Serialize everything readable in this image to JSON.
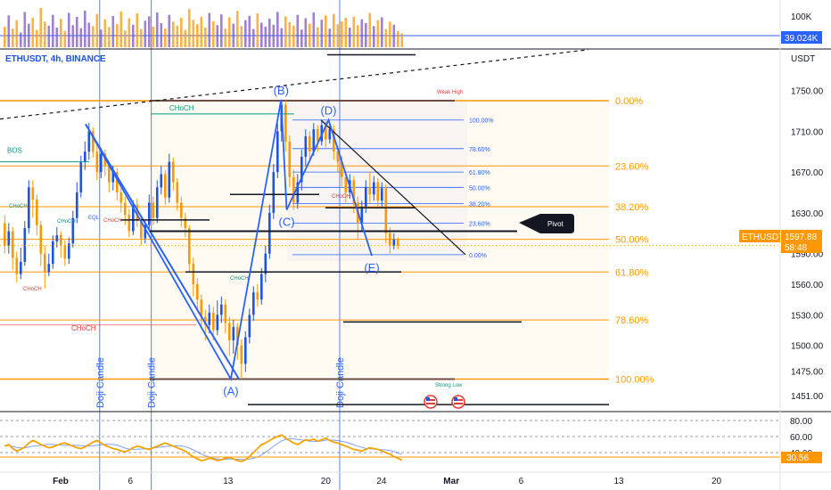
{
  "header": {
    "symbol": "ETHUSDT, 4h, BINANCE",
    "currency": "USDT",
    "volume_axis_label": "100K",
    "volume_value": "39.024K"
  },
  "price_tag": {
    "ticker": "ETHUSDT",
    "price": "1597.88",
    "countdown": "58:48"
  },
  "rsi_value": "30.56",
  "chart_data": [
    {
      "type": "candlestick",
      "title": "ETHUSDT, 4h, BINANCE",
      "y_unit": "USDT",
      "y_ticks": [
        {
          "value": 1750,
          "label": "1750.00"
        },
        {
          "value": 1710,
          "label": "1710.00"
        },
        {
          "value": 1670,
          "label": "1670.00"
        },
        {
          "value": 1630,
          "label": "1630.00"
        },
        {
          "value": 1590,
          "label": "1590.00"
        },
        {
          "value": 1560,
          "label": "1560.00"
        },
        {
          "value": 1530,
          "label": "1530.00"
        },
        {
          "value": 1500,
          "label": "1500.00"
        },
        {
          "value": 1475,
          "label": "1475.00"
        },
        {
          "value": 1451,
          "label": "1451.00"
        }
      ],
      "x_ticks": [
        {
          "day": 1,
          "label": "Feb"
        },
        {
          "day": 6,
          "label": "6"
        },
        {
          "day": 13,
          "label": "13"
        },
        {
          "day": 20,
          "label": "20"
        },
        {
          "day": 24,
          "label": "24"
        },
        {
          "day": 29,
          "label": "Mar"
        },
        {
          "day": 34,
          "label": "6"
        },
        {
          "day": 41,
          "label": "13"
        },
        {
          "day": 48,
          "label": "20"
        }
      ],
      "fib_levels": [
        {
          "ratio": "0.00%",
          "price": 1740
        },
        {
          "ratio": "23.60%",
          "price": 1676
        },
        {
          "ratio": "38.20%",
          "price": 1636
        },
        {
          "ratio": "50.00%",
          "price": 1604
        },
        {
          "ratio": "61.80%",
          "price": 1572
        },
        {
          "ratio": "78.60%",
          "price": 1525
        },
        {
          "ratio": "100.00%",
          "price": 1467
        }
      ],
      "small_fib_levels": [
        {
          "ratio": "100.00%",
          "price": 1721
        },
        {
          "ratio": "78.60%",
          "price": 1693
        },
        {
          "ratio": "61.80%",
          "price": 1670
        },
        {
          "ratio": "50.00%",
          "price": 1655
        },
        {
          "ratio": "38.20%",
          "price": 1639
        },
        {
          "ratio": "23.60%",
          "price": 1620
        },
        {
          "ratio": "0.00%",
          "price": 1589
        }
      ],
      "wave_points": [
        {
          "label": "(A)",
          "day": 13.2,
          "price": 1467
        },
        {
          "label": "(B)",
          "day": 16.8,
          "price": 1741
        },
        {
          "label": "(C)",
          "day": 17.2,
          "price": 1633
        },
        {
          "label": "(D)",
          "day": 20.2,
          "price": 1721
        },
        {
          "label": "(E)",
          "day": 23.3,
          "price": 1588
        }
      ],
      "annotations": [
        "BOS",
        "CHoCH",
        "EQL",
        "Weak High",
        "Strong Low",
        "Pivot",
        "Doji Candle"
      ],
      "vertical_marks": [
        {
          "day": 3.8,
          "label": "Doji Candle"
        },
        {
          "day": 7.5,
          "label": "Doji Candle"
        },
        {
          "day": 21.0,
          "label": "Doji Candle"
        }
      ],
      "last_close": 1597.88,
      "candles": [
        {
          "o": 1620,
          "c": 1598,
          "h": 1628,
          "l": 1590
        },
        {
          "o": 1598,
          "c": 1612,
          "h": 1620,
          "l": 1590
        },
        {
          "o": 1612,
          "c": 1586,
          "h": 1616,
          "l": 1574
        },
        {
          "o": 1586,
          "c": 1570,
          "h": 1592,
          "l": 1562
        },
        {
          "o": 1570,
          "c": 1582,
          "h": 1596,
          "l": 1565
        },
        {
          "o": 1582,
          "c": 1615,
          "h": 1622,
          "l": 1578
        },
        {
          "o": 1615,
          "c": 1655,
          "h": 1662,
          "l": 1610
        },
        {
          "o": 1655,
          "c": 1643,
          "h": 1662,
          "l": 1625
        },
        {
          "o": 1643,
          "c": 1618,
          "h": 1648,
          "l": 1608
        },
        {
          "o": 1618,
          "c": 1590,
          "h": 1622,
          "l": 1578
        },
        {
          "o": 1590,
          "c": 1572,
          "h": 1598,
          "l": 1556
        },
        {
          "o": 1572,
          "c": 1580,
          "h": 1590,
          "l": 1568
        },
        {
          "o": 1580,
          "c": 1602,
          "h": 1608,
          "l": 1575
        },
        {
          "o": 1602,
          "c": 1608,
          "h": 1616,
          "l": 1596
        },
        {
          "o": 1608,
          "c": 1598,
          "h": 1612,
          "l": 1586
        },
        {
          "o": 1598,
          "c": 1585,
          "h": 1603,
          "l": 1578
        },
        {
          "o": 1585,
          "c": 1600,
          "h": 1606,
          "l": 1580
        },
        {
          "o": 1600,
          "c": 1625,
          "h": 1632,
          "l": 1596
        },
        {
          "o": 1625,
          "c": 1650,
          "h": 1660,
          "l": 1620
        },
        {
          "o": 1650,
          "c": 1680,
          "h": 1686,
          "l": 1645
        },
        {
          "o": 1680,
          "c": 1690,
          "h": 1700,
          "l": 1672
        },
        {
          "o": 1690,
          "c": 1710,
          "h": 1718,
          "l": 1682
        },
        {
          "o": 1710,
          "c": 1690,
          "h": 1714,
          "l": 1684
        },
        {
          "o": 1690,
          "c": 1670,
          "h": 1696,
          "l": 1662
        },
        {
          "o": 1670,
          "c": 1688,
          "h": 1694,
          "l": 1664
        },
        {
          "o": 1688,
          "c": 1676,
          "h": 1692,
          "l": 1666
        },
        {
          "o": 1676,
          "c": 1660,
          "h": 1680,
          "l": 1650
        },
        {
          "o": 1660,
          "c": 1670,
          "h": 1676,
          "l": 1652
        },
        {
          "o": 1670,
          "c": 1650,
          "h": 1674,
          "l": 1642
        },
        {
          "o": 1650,
          "c": 1640,
          "h": 1656,
          "l": 1630
        },
        {
          "o": 1640,
          "c": 1628,
          "h": 1646,
          "l": 1618
        },
        {
          "o": 1628,
          "c": 1612,
          "h": 1634,
          "l": 1606
        },
        {
          "o": 1612,
          "c": 1638,
          "h": 1642,
          "l": 1608
        },
        {
          "o": 1638,
          "c": 1622,
          "h": 1644,
          "l": 1616
        },
        {
          "o": 1622,
          "c": 1605,
          "h": 1628,
          "l": 1598
        },
        {
          "o": 1605,
          "c": 1618,
          "h": 1622,
          "l": 1600
        },
        {
          "o": 1618,
          "c": 1640,
          "h": 1648,
          "l": 1612
        },
        {
          "o": 1640,
          "c": 1625,
          "h": 1646,
          "l": 1618
        },
        {
          "o": 1625,
          "c": 1655,
          "h": 1662,
          "l": 1620
        },
        {
          "o": 1655,
          "c": 1668,
          "h": 1676,
          "l": 1648
        },
        {
          "o": 1668,
          "c": 1645,
          "h": 1672,
          "l": 1638
        },
        {
          "o": 1645,
          "c": 1680,
          "h": 1688,
          "l": 1640
        },
        {
          "o": 1680,
          "c": 1660,
          "h": 1684,
          "l": 1652
        },
        {
          "o": 1660,
          "c": 1640,
          "h": 1664,
          "l": 1632
        },
        {
          "o": 1640,
          "c": 1625,
          "h": 1646,
          "l": 1616
        },
        {
          "o": 1625,
          "c": 1615,
          "h": 1630,
          "l": 1606
        },
        {
          "o": 1615,
          "c": 1580,
          "h": 1618,
          "l": 1572
        },
        {
          "o": 1580,
          "c": 1560,
          "h": 1586,
          "l": 1548
        },
        {
          "o": 1560,
          "c": 1545,
          "h": 1566,
          "l": 1534
        },
        {
          "o": 1545,
          "c": 1528,
          "h": 1550,
          "l": 1516
        },
        {
          "o": 1528,
          "c": 1520,
          "h": 1535,
          "l": 1505
        },
        {
          "o": 1520,
          "c": 1532,
          "h": 1540,
          "l": 1512
        },
        {
          "o": 1532,
          "c": 1515,
          "h": 1538,
          "l": 1505
        },
        {
          "o": 1515,
          "c": 1530,
          "h": 1544,
          "l": 1510
        },
        {
          "o": 1530,
          "c": 1540,
          "h": 1548,
          "l": 1522
        },
        {
          "o": 1540,
          "c": 1522,
          "h": 1545,
          "l": 1512
        },
        {
          "o": 1522,
          "c": 1505,
          "h": 1528,
          "l": 1490
        },
        {
          "o": 1505,
          "c": 1518,
          "h": 1525,
          "l": 1492
        },
        {
          "o": 1518,
          "c": 1500,
          "h": 1522,
          "l": 1486
        },
        {
          "o": 1500,
          "c": 1482,
          "h": 1506,
          "l": 1467
        },
        {
          "o": 1482,
          "c": 1508,
          "h": 1514,
          "l": 1474
        },
        {
          "o": 1508,
          "c": 1530,
          "h": 1536,
          "l": 1502
        },
        {
          "o": 1530,
          "c": 1552,
          "h": 1558,
          "l": 1524
        },
        {
          "o": 1552,
          "c": 1545,
          "h": 1560,
          "l": 1538
        },
        {
          "o": 1545,
          "c": 1570,
          "h": 1576,
          "l": 1540
        },
        {
          "o": 1570,
          "c": 1590,
          "h": 1598,
          "l": 1562
        },
        {
          "o": 1590,
          "c": 1630,
          "h": 1638,
          "l": 1585
        },
        {
          "o": 1630,
          "c": 1670,
          "h": 1678,
          "l": 1624
        },
        {
          "o": 1670,
          "c": 1710,
          "h": 1718,
          "l": 1664
        },
        {
          "o": 1710,
          "c": 1736,
          "h": 1741,
          "l": 1700
        },
        {
          "o": 1736,
          "c": 1700,
          "h": 1740,
          "l": 1690
        },
        {
          "o": 1700,
          "c": 1665,
          "h": 1706,
          "l": 1655
        },
        {
          "o": 1665,
          "c": 1640,
          "h": 1672,
          "l": 1633
        },
        {
          "o": 1640,
          "c": 1660,
          "h": 1668,
          "l": 1634
        },
        {
          "o": 1660,
          "c": 1685,
          "h": 1692,
          "l": 1652
        },
        {
          "o": 1685,
          "c": 1705,
          "h": 1712,
          "l": 1676
        },
        {
          "o": 1705,
          "c": 1690,
          "h": 1710,
          "l": 1680
        },
        {
          "o": 1690,
          "c": 1712,
          "h": 1718,
          "l": 1686
        },
        {
          "o": 1712,
          "c": 1700,
          "h": 1716,
          "l": 1690
        },
        {
          "o": 1700,
          "c": 1716,
          "h": 1721,
          "l": 1696
        },
        {
          "o": 1716,
          "c": 1702,
          "h": 1720,
          "l": 1694
        },
        {
          "o": 1702,
          "c": 1712,
          "h": 1718,
          "l": 1698
        },
        {
          "o": 1712,
          "c": 1690,
          "h": 1716,
          "l": 1682
        },
        {
          "o": 1690,
          "c": 1680,
          "h": 1696,
          "l": 1670
        },
        {
          "o": 1680,
          "c": 1665,
          "h": 1686,
          "l": 1656
        },
        {
          "o": 1665,
          "c": 1650,
          "h": 1670,
          "l": 1640
        },
        {
          "o": 1650,
          "c": 1662,
          "h": 1668,
          "l": 1644
        },
        {
          "o": 1662,
          "c": 1640,
          "h": 1666,
          "l": 1630
        },
        {
          "o": 1640,
          "c": 1620,
          "h": 1646,
          "l": 1604
        },
        {
          "o": 1620,
          "c": 1636,
          "h": 1642,
          "l": 1612
        },
        {
          "o": 1636,
          "c": 1655,
          "h": 1662,
          "l": 1630
        },
        {
          "o": 1655,
          "c": 1648,
          "h": 1670,
          "l": 1640
        },
        {
          "o": 1648,
          "c": 1660,
          "h": 1666,
          "l": 1642
        },
        {
          "o": 1660,
          "c": 1642,
          "h": 1664,
          "l": 1634
        },
        {
          "o": 1642,
          "c": 1654,
          "h": 1660,
          "l": 1636
        },
        {
          "o": 1654,
          "c": 1610,
          "h": 1658,
          "l": 1600
        },
        {
          "o": 1610,
          "c": 1598,
          "h": 1616,
          "l": 1590
        },
        {
          "o": 1598,
          "c": 1604,
          "h": 1610,
          "l": 1594
        },
        {
          "o": 1604,
          "c": 1597.88,
          "h": 1606,
          "l": 1594
        }
      ],
      "volumes": [
        42,
        65,
        38,
        55,
        30,
        72,
        48,
        60,
        35,
        80,
        52,
        44,
        66,
        40,
        58,
        33,
        70,
        45,
        62,
        39,
        75,
        50,
        43,
        68,
        36,
        57,
        41,
        64,
        47,
        73,
        34,
        59,
        46,
        69,
        37,
        54,
        63,
        42,
        71,
        49,
        38,
        66,
        52,
        44,
        60,
        35,
        78,
        56,
        47,
        62,
        40,
        70,
        53,
        45,
        67,
        38,
        61,
        48,
        74,
        43,
        55,
        64,
        37,
        69,
        50,
        42,
        58,
        46,
        72,
        39,
        63,
        51,
        44,
        66,
        36,
        59,
        48,
        71,
        41,
        56,
        65,
        38,
        68,
        47,
        53,
        60,
        40,
        62,
        45,
        57,
        49,
        70,
        43,
        55,
        61,
        37,
        52,
        46,
        33,
        28
      ],
      "rsi": [
        48,
        50,
        45,
        42,
        44,
        47,
        52,
        55,
        53,
        50,
        48,
        46,
        47,
        49,
        51,
        52,
        50,
        48,
        46,
        45,
        47,
        50,
        53,
        55,
        52,
        49,
        47,
        45,
        44,
        42,
        41,
        43,
        46,
        48,
        47,
        45,
        44,
        46,
        48,
        50,
        52,
        50,
        48,
        46,
        44,
        42,
        38,
        35,
        32,
        30,
        31,
        33,
        32,
        30,
        31,
        33,
        34,
        32,
        30,
        29,
        31,
        35,
        40,
        45,
        50,
        52,
        55,
        58,
        60,
        62,
        58,
        55,
        52,
        50,
        53,
        56,
        55,
        57,
        54,
        56,
        58,
        55,
        53,
        52,
        50,
        48,
        46,
        44,
        43,
        42,
        44,
        46,
        45,
        44,
        42,
        40,
        38,
        35,
        33,
        30.56
      ],
      "rsi_levels": [
        {
          "value": 80,
          "label": "80.00"
        },
        {
          "value": 60,
          "label": "60.00"
        },
        {
          "value": 40,
          "label": "40.00"
        }
      ]
    }
  ]
}
